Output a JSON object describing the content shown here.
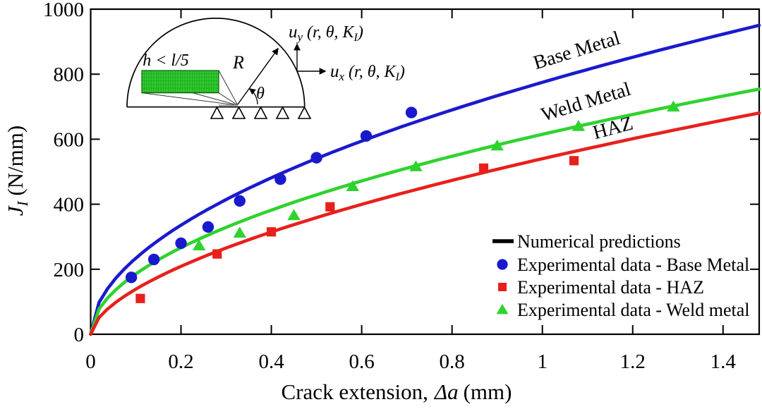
{
  "figure": {
    "background": "#ffffff",
    "xlabel": {
      "prefix": "Crack extension,",
      "math": "Δa",
      "suffix": "(mm)"
    },
    "ylabel": {
      "sym": "J",
      "sub": "I",
      "unit": " (N/mm)"
    }
  },
  "inset": {
    "mesh_label": "h < l/5",
    "radius_label": "R",
    "angle_label": "θ",
    "u_sym": "u",
    "uy_sub": "y",
    "ux_sub": "x",
    "args_pre": " (r, θ, K",
    "args_sub": "I",
    "args_post": ")",
    "mesh_fill": "#2ec82e"
  },
  "chart_data": {
    "type": "line+scatter",
    "title": "",
    "xlabel": "Crack extension, Δa (mm)",
    "ylabel": "J_I (N/mm)",
    "xlim": [
      0,
      1.48
    ],
    "ylim": [
      0,
      1000
    ],
    "grid": false,
    "x_tick_values": [
      0,
      0.2,
      0.4,
      0.6,
      0.8,
      1,
      1.2,
      1.4
    ],
    "x_tick_labels": [
      "0",
      "0.2",
      "0.4",
      "0.6",
      "0.8",
      "1",
      "1.2",
      "1.4"
    ],
    "y_tick_values": [
      0,
      200,
      400,
      600,
      800,
      1000
    ],
    "y_tick_labels": [
      "0",
      "200",
      "400",
      "600",
      "800",
      "1000"
    ],
    "series": [
      {
        "name": "Numerical prediction - Base Metal",
        "kind": "curve",
        "color": "#1a1acd",
        "power_C": 775,
        "power_n": 0.52,
        "x_end": 1.48
      },
      {
        "name": "Numerical prediction - Weld Metal",
        "kind": "curve",
        "color": "#2ed32e",
        "power_C": 615,
        "power_n": 0.52,
        "x_end": 1.48
      },
      {
        "name": "Numerical prediction - HAZ",
        "kind": "curve",
        "color": "#e8201c",
        "power_C": 540,
        "power_n": 0.59,
        "x_end": 1.48
      },
      {
        "name": "Experimental data - Base Metal",
        "kind": "scatter",
        "marker": "circle",
        "color": "#1a1acd",
        "points": [
          [
            0.09,
            175
          ],
          [
            0.14,
            230
          ],
          [
            0.2,
            280
          ],
          [
            0.26,
            330
          ],
          [
            0.33,
            410
          ],
          [
            0.42,
            477
          ],
          [
            0.5,
            543
          ],
          [
            0.61,
            610
          ],
          [
            0.71,
            682
          ]
        ]
      },
      {
        "name": "Experimental data - HAZ",
        "kind": "scatter",
        "marker": "square",
        "color": "#e8201c",
        "points": [
          [
            0.11,
            110
          ],
          [
            0.28,
            247
          ],
          [
            0.4,
            315
          ],
          [
            0.53,
            392
          ],
          [
            0.87,
            511
          ],
          [
            1.07,
            534
          ]
        ]
      },
      {
        "name": "Experimental data - Weld metal",
        "kind": "scatter",
        "marker": "triangle",
        "color": "#2ed32e",
        "points": [
          [
            0.24,
            273
          ],
          [
            0.33,
            312
          ],
          [
            0.45,
            366
          ],
          [
            0.58,
            455
          ],
          [
            0.72,
            516
          ],
          [
            0.9,
            580
          ],
          [
            1.08,
            640
          ],
          [
            1.29,
            700
          ]
        ]
      }
    ],
    "annotations": [
      {
        "text": "Base Metal"
      },
      {
        "text": "Weld Metal"
      },
      {
        "text": "HAZ"
      }
    ],
    "legend": {
      "position": "inside-lower-right",
      "entries": [
        {
          "marker": "line",
          "color": "#000000",
          "label": "Numerical predictions"
        },
        {
          "marker": "circle",
          "color": "#1a1acd",
          "label": "Experimental data - Base Metal"
        },
        {
          "marker": "square",
          "color": "#e8201c",
          "label": "Experimental data - HAZ"
        },
        {
          "marker": "triangle",
          "color": "#2ed32e",
          "label": "Experimental data - Weld metal"
        }
      ]
    }
  }
}
